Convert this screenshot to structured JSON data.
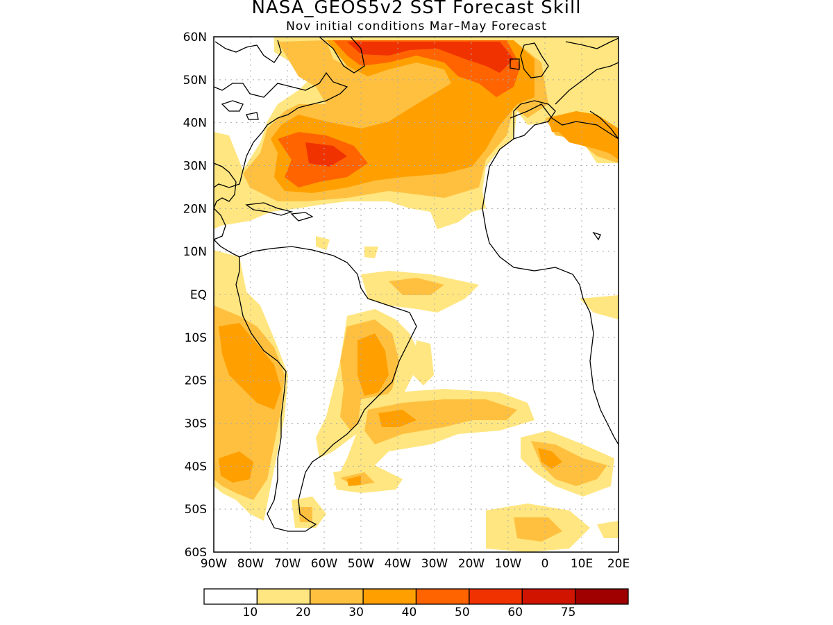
{
  "title": "NASA_GEOS5v2 SST Forecast Skill",
  "subtitle": "Nov initial conditions  Mar–May Forecast",
  "lat_labels": [
    "60N",
    "50N",
    "40N",
    "30N",
    "20N",
    "10N",
    "EQ",
    "10S",
    "20S",
    "30S",
    "40S",
    "50S",
    "60S"
  ],
  "lon_labels": [
    "90W",
    "80W",
    "70W",
    "60W",
    "50W",
    "40W",
    "30W",
    "20W",
    "10W",
    "0",
    "10E",
    "20E"
  ],
  "colorbar": {
    "ticks": [
      "10",
      "20",
      "30",
      "40",
      "50",
      "60",
      "75"
    ],
    "colors": [
      "#ffffff",
      "#ffe680",
      "#ffc040",
      "#ffa000",
      "#ff6400",
      "#f03200",
      "#d01400",
      "#a00000"
    ]
  },
  "map_extent": {
    "lon": [
      -90,
      20
    ],
    "lat": [
      -60,
      60
    ]
  }
}
